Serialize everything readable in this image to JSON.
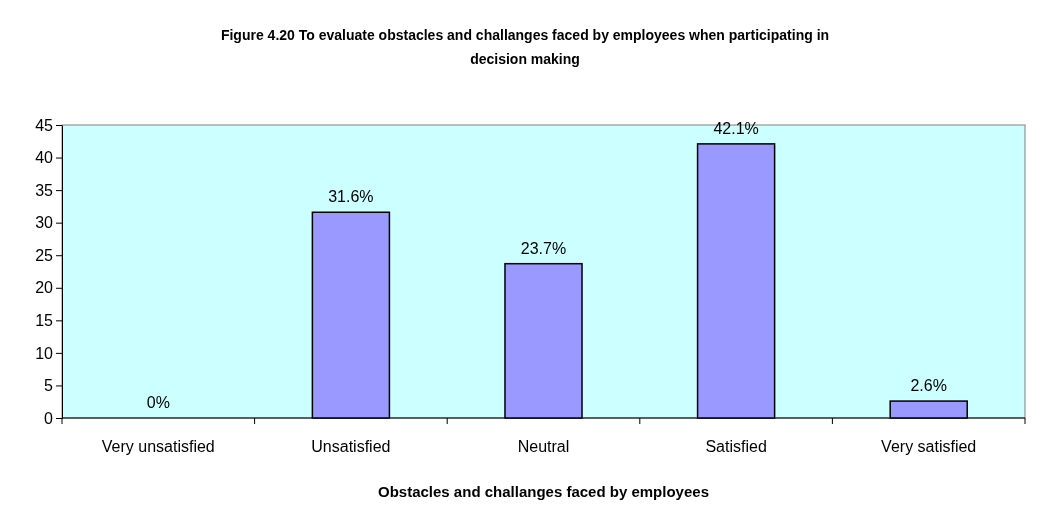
{
  "chart_data": {
    "type": "bar",
    "title": "Figure 4.20 To evaluate obstacles and challanges faced by employees when participating in decision making",
    "xlabel": "Obstacles and challanges faced by employees",
    "categories": [
      "Very unsatisfied",
      "Unsatisfied",
      "Neutral",
      "Satisfied",
      "Very satisfied"
    ],
    "values": [
      0,
      31.6,
      23.7,
      42.1,
      2.6
    ],
    "value_labels": [
      "0%",
      "31.6%",
      "23.7%",
      "42.1%",
      "2.6%"
    ],
    "color": "#9999ff",
    "ylim": [
      0,
      45
    ],
    "yticks": [
      0,
      5,
      10,
      15,
      20,
      25,
      30,
      35,
      40,
      45
    ],
    "grid": false
  }
}
